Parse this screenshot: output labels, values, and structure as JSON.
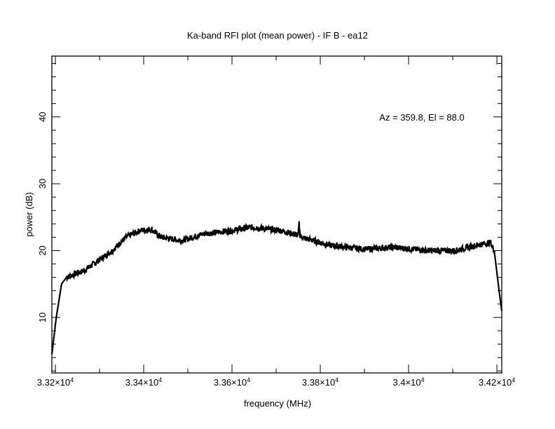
{
  "chart_data": {
    "type": "line",
    "title": "Ka-band RFI plot (mean power) - IF B - ea12",
    "xlabel": "frequency (MHz)",
    "ylabel": "power (dB)",
    "annotation": "Az = 359.8, El = 88.0",
    "xlim": [
      33192,
      34211
    ],
    "ylim": [
      1.7,
      49.1
    ],
    "xticks": [
      {
        "v": 33200,
        "m": "3.32",
        "e": "4"
      },
      {
        "v": 33400,
        "m": "3.34",
        "e": "4"
      },
      {
        "v": 33600,
        "m": "3.36",
        "e": "4"
      },
      {
        "v": 33800,
        "m": "3.38",
        "e": "4"
      },
      {
        "v": 34000,
        "m": "3.4",
        "e": "4"
      },
      {
        "v": 34200,
        "m": "3.42",
        "e": "4"
      }
    ],
    "yticks": [
      10,
      20,
      30,
      40
    ],
    "series": [
      {
        "name": "mean power",
        "x": [
          33192,
          33202,
          33214,
          33225,
          33265,
          33297,
          33329,
          33360,
          33392,
          33416,
          33440,
          33487,
          33535,
          33598,
          33646,
          33710,
          33750,
          33752,
          33754,
          33757,
          33821,
          33900,
          33963,
          34043,
          34106,
          34154,
          34186,
          34194,
          34205,
          34211
        ],
        "y": [
          4.5,
          10,
          15,
          16,
          17,
          18.5,
          20,
          22,
          23,
          23.2,
          22,
          21.5,
          22.5,
          23,
          23.5,
          23,
          22.3,
          24,
          22.3,
          22,
          20.8,
          20.2,
          20.5,
          20,
          20,
          20.8,
          21.2,
          20,
          14,
          11
        ]
      }
    ]
  }
}
